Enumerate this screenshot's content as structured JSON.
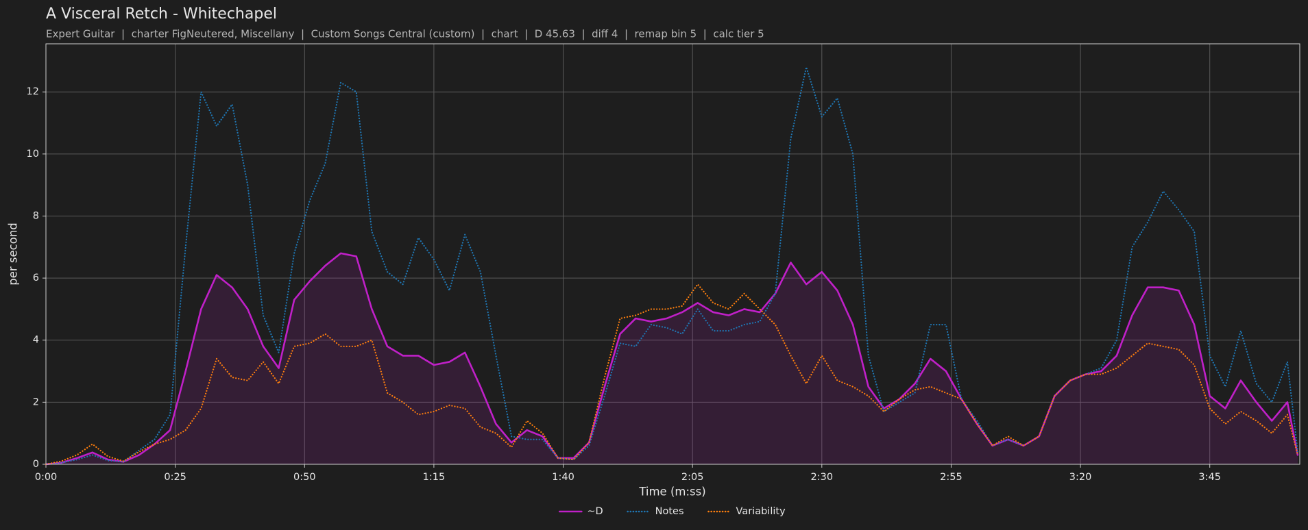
{
  "chart_data": {
    "type": "line",
    "title": "A Visceral Retch - Whitechapel",
    "subtitle": "Expert Guitar  |  charter FigNeutered, Miscellany  |  Custom Songs Central (custom)  |  chart  |  D 45.63  |  diff 4  |  remap bin 5  |  calc tier 5",
    "xlabel": "Time (m:ss)",
    "ylabel": "per second",
    "x": [
      0,
      3,
      6,
      9,
      12,
      15,
      18,
      21,
      24,
      27,
      30,
      33,
      36,
      39,
      42,
      45,
      48,
      51,
      54,
      57,
      60,
      63,
      66,
      69,
      72,
      75,
      78,
      81,
      84,
      87,
      90,
      93,
      96,
      99,
      102,
      105,
      108,
      111,
      114,
      117,
      120,
      123,
      126,
      129,
      132,
      135,
      138,
      141,
      144,
      147,
      150,
      153,
      156,
      159,
      162,
      165,
      168,
      171,
      174,
      177,
      180,
      183,
      186,
      189,
      192,
      195,
      198,
      201,
      204,
      207,
      210,
      213,
      216,
      219,
      222,
      225,
      228,
      231,
      234,
      237,
      240,
      242
    ],
    "series": [
      {
        "name": "~D",
        "color": "#c020c8",
        "style": "solid",
        "fill": true,
        "values": [
          0,
          0.05,
          0.2,
          0.38,
          0.15,
          0.08,
          0.3,
          0.65,
          1.1,
          3.0,
          5.0,
          6.1,
          5.7,
          5.0,
          3.8,
          3.1,
          5.3,
          5.9,
          6.4,
          6.8,
          6.7,
          5.0,
          3.8,
          3.5,
          3.5,
          3.2,
          3.3,
          3.6,
          2.5,
          1.3,
          0.7,
          1.1,
          0.9,
          0.2,
          0.2,
          0.7,
          2.5,
          4.2,
          4.7,
          4.6,
          4.7,
          4.9,
          5.2,
          4.9,
          4.8,
          5.0,
          4.9,
          5.5,
          6.5,
          5.8,
          6.2,
          5.6,
          4.5,
          2.5,
          1.8,
          2.1,
          2.6,
          3.4,
          3.0,
          2.1,
          1.3,
          0.6,
          0.8,
          0.6,
          0.9,
          2.2,
          2.7,
          2.9,
          3.0,
          3.5,
          4.8,
          5.7,
          5.7,
          5.6,
          4.5,
          2.2,
          1.8,
          2.7,
          2.0,
          1.4,
          2.0,
          0.3
        ]
      },
      {
        "name": "Notes",
        "color": "#1f77b4",
        "style": "dotted",
        "fill": false,
        "values": [
          0,
          0.05,
          0.15,
          0.3,
          0.12,
          0.08,
          0.45,
          0.8,
          1.6,
          7.0,
          12.0,
          10.9,
          11.6,
          9.0,
          4.8,
          3.6,
          6.8,
          8.5,
          9.7,
          12.3,
          12.0,
          7.5,
          6.2,
          5.8,
          7.3,
          6.6,
          5.6,
          7.4,
          6.2,
          3.5,
          0.9,
          0.8,
          0.8,
          0.2,
          0.15,
          0.6,
          2.2,
          3.9,
          3.8,
          4.5,
          4.4,
          4.2,
          5.0,
          4.3,
          4.3,
          4.5,
          4.6,
          5.5,
          10.5,
          12.8,
          11.2,
          11.8,
          10.0,
          3.5,
          1.7,
          2.0,
          2.3,
          4.5,
          4.5,
          2.1,
          1.4,
          0.6,
          0.8,
          0.6,
          0.9,
          2.2,
          2.7,
          2.9,
          3.1,
          4.0,
          7.0,
          7.8,
          8.8,
          8.2,
          7.5,
          3.5,
          2.5,
          4.3,
          2.6,
          2.0,
          3.3,
          0.4
        ]
      },
      {
        "name": "Variability",
        "color": "#ff7f0e",
        "style": "dotted",
        "fill": false,
        "values": [
          0,
          0.1,
          0.3,
          0.65,
          0.25,
          0.1,
          0.4,
          0.65,
          0.8,
          1.1,
          1.8,
          3.4,
          2.8,
          2.7,
          3.3,
          2.6,
          3.8,
          3.9,
          4.2,
          3.8,
          3.8,
          4.0,
          2.3,
          2.0,
          1.6,
          1.7,
          1.9,
          1.8,
          1.2,
          1.0,
          0.55,
          1.4,
          1.0,
          0.2,
          0.15,
          0.7,
          2.8,
          4.7,
          4.8,
          5.0,
          5.0,
          5.1,
          5.8,
          5.2,
          5.0,
          5.5,
          5.0,
          4.5,
          3.5,
          2.6,
          3.5,
          2.7,
          2.5,
          2.2,
          1.7,
          2.1,
          2.4,
          2.5,
          2.3,
          2.1,
          1.3,
          0.6,
          0.9,
          0.6,
          0.9,
          2.2,
          2.7,
          2.9,
          2.9,
          3.1,
          3.5,
          3.9,
          3.8,
          3.7,
          3.2,
          1.8,
          1.3,
          1.7,
          1.4,
          1.0,
          1.6,
          0.3
        ]
      }
    ],
    "xlim": [
      0,
      242.4
    ],
    "ylim": [
      0,
      13.55
    ],
    "xticks": [
      {
        "value": 0,
        "label": "0:00"
      },
      {
        "value": 25,
        "label": "0:25"
      },
      {
        "value": 50,
        "label": "0:50"
      },
      {
        "value": 75,
        "label": "1:15"
      },
      {
        "value": 100,
        "label": "1:40"
      },
      {
        "value": 125,
        "label": "2:05"
      },
      {
        "value": 150,
        "label": "2:30"
      },
      {
        "value": 175,
        "label": "2:55"
      },
      {
        "value": 200,
        "label": "3:20"
      },
      {
        "value": 225,
        "label": "3:45"
      }
    ],
    "yticks": [
      0,
      2,
      4,
      6,
      8,
      10,
      12
    ],
    "grid": true,
    "legend": "bottom"
  }
}
